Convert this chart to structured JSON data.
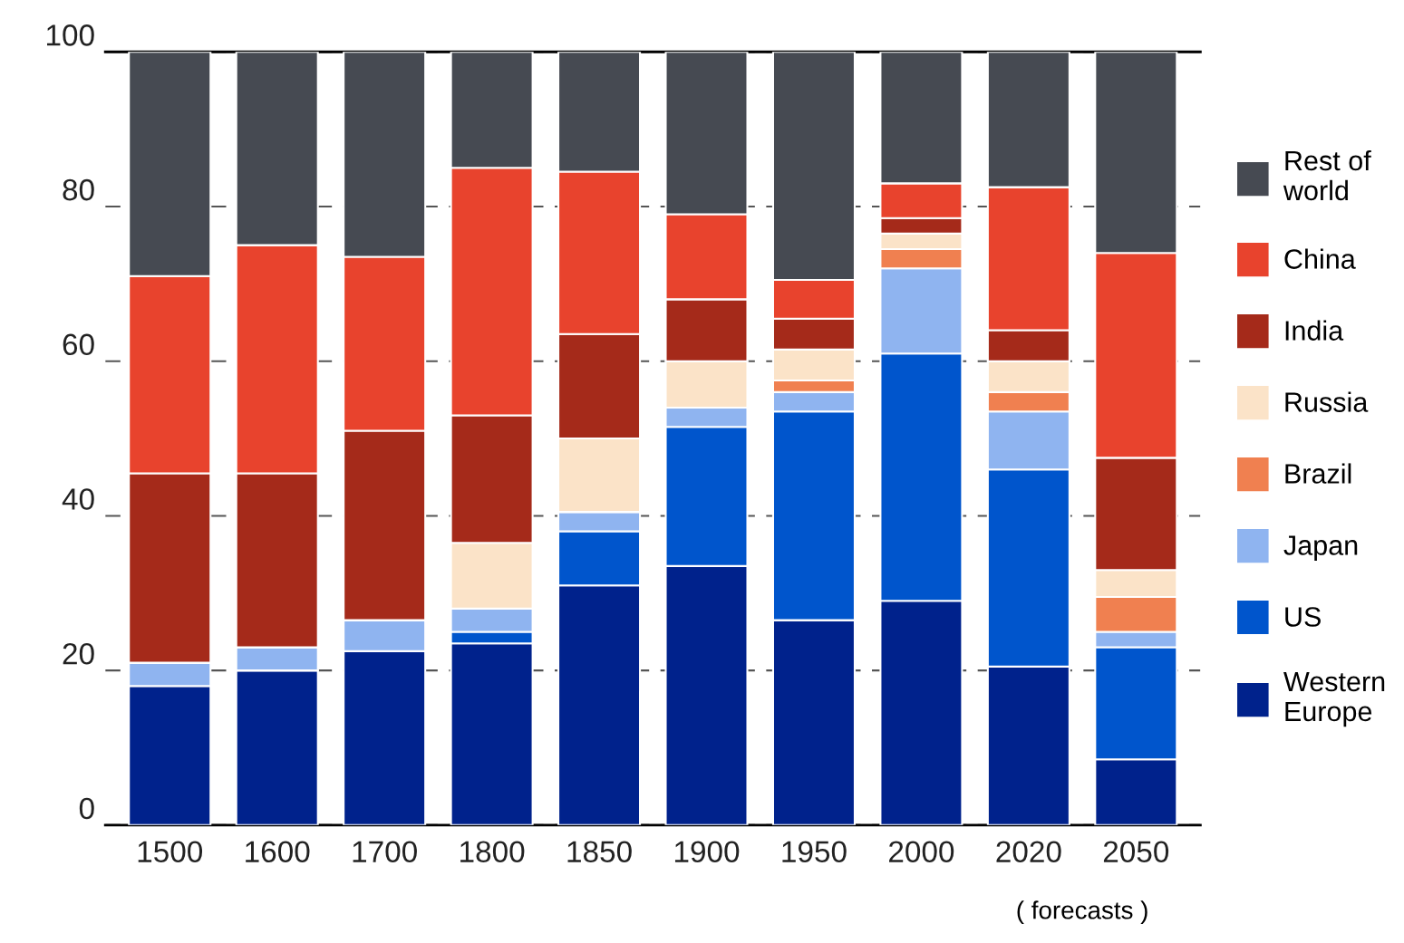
{
  "chart_data": {
    "type": "bar",
    "stacked": true,
    "categories": [
      "1500",
      "1600",
      "1700",
      "1800",
      "1850",
      "1900",
      "1950",
      "2000",
      "2020",
      "2050"
    ],
    "series": [
      {
        "name": "Western Europe",
        "color": "#00228c",
        "values": [
          18,
          20,
          22.5,
          23.5,
          31,
          33.5,
          26.5,
          29,
          20.5,
          8.5
        ]
      },
      {
        "name": "US",
        "color": "#0055cc",
        "values": [
          0,
          0,
          0,
          1.5,
          7,
          18,
          27,
          32,
          25.5,
          14.5
        ]
      },
      {
        "name": "Japan",
        "color": "#8fb4f0",
        "values": [
          3,
          3,
          4,
          3,
          2.5,
          2.5,
          2.5,
          11,
          7.5,
          2
        ]
      },
      {
        "name": "Brazil",
        "color": "#f08050",
        "values": [
          0,
          0,
          0,
          0,
          0,
          0,
          1.5,
          2.5,
          2.5,
          4.5
        ]
      },
      {
        "name": "Russia",
        "color": "#fbe3c8",
        "values": [
          0,
          0,
          0,
          8.5,
          9.5,
          6,
          4,
          2,
          4,
          3.5
        ]
      },
      {
        "name": "India",
        "color": "#a52a1a",
        "values": [
          24.5,
          22.5,
          24.5,
          16.5,
          13.5,
          8,
          4,
          2,
          4,
          14.5
        ]
      },
      {
        "name": "China",
        "color": "#e8432d",
        "values": [
          25.5,
          29.5,
          22.5,
          32,
          21,
          11,
          5,
          4.5,
          18.5,
          26.5
        ]
      },
      {
        "name": "Rest of world",
        "color": "#464a52",
        "values": [
          29,
          25,
          26.5,
          15,
          15.5,
          21,
          29.5,
          17,
          17.5,
          26
        ]
      }
    ],
    "ylim": [
      0,
      100
    ],
    "yticks": [
      0,
      20,
      40,
      60,
      80,
      100
    ],
    "grid": "y",
    "legend": "right",
    "annotations": [
      "( forecasts )"
    ]
  }
}
